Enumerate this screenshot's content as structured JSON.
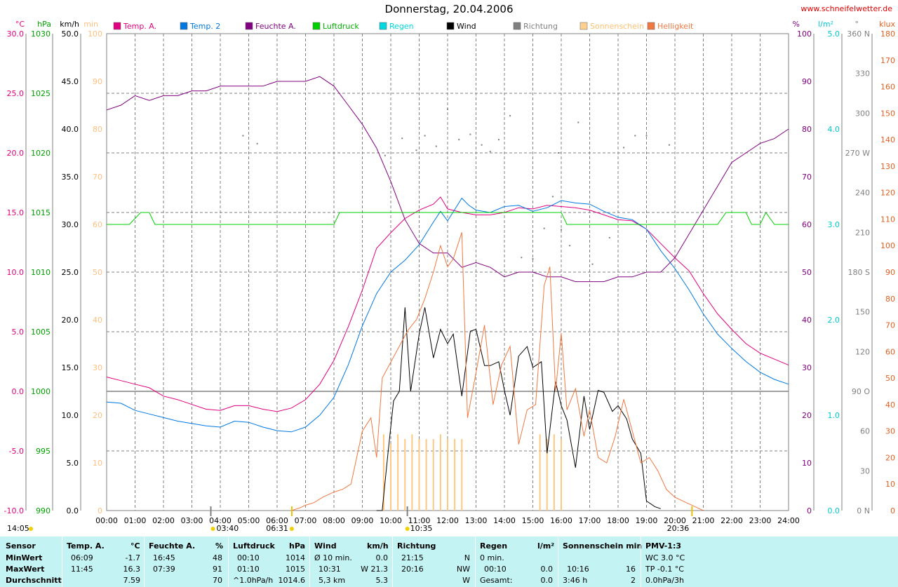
{
  "header": {
    "title": "Donnerstag, 20.04.2006",
    "site": "www.schneifelwetter.de"
  },
  "legend": [
    {
      "label": "Temp. A.",
      "color": "#e0007f"
    },
    {
      "label": "Temp. 2",
      "color": "#0078e0"
    },
    {
      "label": "Feuchte A.",
      "color": "#800080"
    },
    {
      "label": "Luftdruck",
      "color": "#00d000"
    },
    {
      "label": "Regen",
      "color": "#00d8e0"
    },
    {
      "label": "Wind",
      "color": "#000000"
    },
    {
      "label": "Richtung",
      "color": "#808080"
    },
    {
      "label": "Sonnenschein",
      "color": "#ffd090"
    },
    {
      "label": "Helligkeit",
      "color": "#f07840"
    }
  ],
  "axes": {
    "temp": {
      "unit": "°C",
      "ticks": [
        "30.0",
        "25.0",
        "20.0",
        "15.0",
        "10.0",
        "5.0",
        "0.0",
        "-5.0",
        "-10.0"
      ],
      "color": "#e0007f"
    },
    "pressure": {
      "unit": "hPa",
      "ticks": [
        "1030",
        "1025",
        "1020",
        "1015",
        "1010",
        "1005",
        "1000",
        "995",
        "990"
      ],
      "color": "#00a000"
    },
    "wind": {
      "unit": "km/h",
      "ticks": [
        "50.0",
        "45.0",
        "40.0",
        "35.0",
        "30.0",
        "25.0",
        "20.0",
        "15.0",
        "10.0",
        "5.0",
        "0.0"
      ],
      "color": "#000000"
    },
    "sunmin": {
      "unit": "min",
      "ticks": [
        "100",
        "90",
        "80",
        "70",
        "60",
        "50",
        "40",
        "30",
        "20",
        "10",
        "0"
      ],
      "color": "#ffc080"
    },
    "humidity": {
      "unit": "%",
      "ticks": [
        "100",
        "90",
        "80",
        "70",
        "60",
        "50",
        "40",
        "30",
        "20",
        "10",
        "0"
      ],
      "color": "#800080"
    },
    "rain": {
      "unit": "l/m²",
      "ticks": [
        "5.0",
        "4.0",
        "3.0",
        "2.0",
        "1.0",
        "0.0"
      ],
      "color": "#00c8d0"
    },
    "direction": {
      "unit": "°",
      "ticks": [
        "360 N",
        "330",
        "300",
        "270 W",
        "240",
        "210",
        "180 S",
        "150",
        "120",
        "90 O",
        "60",
        "30",
        "0 N"
      ],
      "color": "#808080"
    },
    "lux": {
      "unit": "klux",
      "ticks": [
        "180",
        "170",
        "160",
        "150",
        "140",
        "130",
        "120",
        "110",
        "100",
        "90",
        "80",
        "70",
        "60",
        "50",
        "40",
        "30",
        "20",
        "10",
        "0"
      ],
      "color": "#e06020"
    },
    "time": {
      "ticks": [
        "00:00",
        "01:00",
        "02:00",
        "03:00",
        "04:00",
        "05:00",
        "06:00",
        "07:00",
        "08:00",
        "09:00",
        "10:00",
        "11:00",
        "12:00",
        "13:00",
        "14:00",
        "15:00",
        "16:00",
        "17:00",
        "18:00",
        "19:00",
        "20:00",
        "21:00",
        "22:00",
        "23:00",
        "24:00"
      ]
    }
  },
  "markers": {
    "first": "14:05",
    "moonset": "03:40",
    "sunrise": "06:31",
    "solar_noon": "10:35",
    "sunset": "20:36"
  },
  "chart_data": {
    "type": "line",
    "x_unit": "hours",
    "series": [
      {
        "name": "Temp. A.",
        "axis": "temp",
        "x": [
          0,
          0.5,
          1,
          1.5,
          2,
          2.5,
          3,
          3.5,
          4,
          4.5,
          5,
          5.5,
          6,
          6.5,
          7,
          7.5,
          8,
          8.5,
          9,
          9.5,
          10,
          10.5,
          11,
          11.5,
          11.75,
          12,
          12.5,
          13,
          13.5,
          14,
          14.5,
          15,
          15.5,
          16,
          16.5,
          17,
          17.5,
          18,
          18.5,
          19,
          19.5,
          20,
          20.5,
          21,
          21.5,
          22,
          22.5,
          23,
          23.5,
          24
        ],
        "y": [
          1.2,
          0.9,
          0.6,
          0.3,
          -0.4,
          -0.7,
          -1.1,
          -1.5,
          -1.6,
          -1.2,
          -1.2,
          -1.5,
          -1.7,
          -1.4,
          -0.7,
          0.6,
          2.6,
          5.4,
          8.5,
          12.0,
          13.3,
          14.5,
          15.2,
          15.7,
          16.3,
          15.3,
          15.0,
          14.8,
          14.8,
          15.0,
          15.4,
          15.3,
          15.6,
          15.5,
          15.4,
          15.2,
          14.8,
          14.4,
          14.3,
          13.6,
          12.4,
          11.2,
          10.1,
          8.2,
          6.5,
          5.2,
          4.0,
          3.2,
          2.7,
          2.2
        ]
      },
      {
        "name": "Temp. 2",
        "axis": "temp",
        "x": [
          0,
          0.5,
          1,
          1.5,
          2,
          2.5,
          3,
          3.5,
          4,
          4.5,
          5,
          5.5,
          6,
          6.5,
          7,
          7.5,
          8,
          8.5,
          9,
          9.5,
          10,
          10.5,
          11,
          11.5,
          11.75,
          12,
          12.5,
          12.75,
          13,
          13.5,
          14,
          14.5,
          15,
          15.5,
          16,
          16.5,
          17,
          17.5,
          18,
          18.5,
          19,
          19.5,
          20,
          20.5,
          21,
          21.5,
          22,
          22.5,
          23,
          23.5,
          24
        ],
        "y": [
          -0.9,
          -1.0,
          -1.6,
          -1.9,
          -2.2,
          -2.5,
          -2.7,
          -2.9,
          -3.0,
          -2.5,
          -2.6,
          -3.0,
          -3.3,
          -3.4,
          -3.0,
          -2.0,
          -0.5,
          2.2,
          5.5,
          8.2,
          10.0,
          11.0,
          12.3,
          14.2,
          15.1,
          14.3,
          16.2,
          15.6,
          15.2,
          15.0,
          15.5,
          15.6,
          15.1,
          15.4,
          16.0,
          15.8,
          15.7,
          15.1,
          14.6,
          14.4,
          13.6,
          11.8,
          10.3,
          8.5,
          6.5,
          4.8,
          3.6,
          2.5,
          1.6,
          1.0,
          0.6
        ]
      },
      {
        "name": "Feuchte A.",
        "axis": "humidity",
        "x": [
          0,
          0.5,
          1,
          1.5,
          2,
          2.5,
          3,
          3.5,
          4,
          4.5,
          5,
          5.5,
          6,
          6.5,
          7,
          7.5,
          8,
          8.5,
          9,
          9.5,
          10,
          10.5,
          11,
          11.5,
          12,
          12.5,
          13,
          13.5,
          14,
          14.5,
          15,
          15.5,
          16,
          16.5,
          17,
          17.5,
          18,
          18.5,
          19,
          19.5,
          20,
          20.5,
          21,
          21.5,
          22,
          22.5,
          23,
          23.5,
          24
        ],
        "y": [
          84,
          85,
          87,
          86,
          87,
          87,
          88,
          88,
          89,
          89,
          89,
          89,
          90,
          90,
          90,
          91,
          89,
          85,
          81,
          76,
          69,
          61,
          56,
          54,
          54,
          51,
          52,
          51,
          49,
          50,
          50,
          49,
          49,
          48,
          48,
          48,
          49,
          49,
          50,
          50,
          53,
          58,
          63,
          68,
          73,
          75,
          77,
          78,
          80
        ]
      },
      {
        "name": "Luftdruck",
        "axis": "pressure",
        "x": [
          0,
          0.8,
          1.2,
          1.5,
          1.7,
          2,
          7.8,
          8,
          8.2,
          16,
          16.2,
          21.5,
          21.8,
          22.5,
          22.7,
          23,
          23.2,
          23.5,
          24
        ],
        "y": [
          1014,
          1014,
          1015,
          1015,
          1014,
          1014,
          1014,
          1014,
          1015,
          1015,
          1014,
          1014,
          1015,
          1015,
          1014,
          1014,
          1015,
          1014,
          1014
        ]
      },
      {
        "name": "Wind",
        "axis": "wind",
        "x": [
          9.5,
          9.7,
          9.9,
          10.1,
          10.3,
          10.5,
          10.7,
          11,
          11.2,
          11.5,
          11.75,
          12,
          12.2,
          12.5,
          12.8,
          13,
          13.3,
          13.5,
          13.8,
          14,
          14.2,
          14.5,
          14.8,
          15,
          15.3,
          15.5,
          15.8,
          16,
          16.2,
          16.5,
          16.8,
          17,
          17.3,
          17.5,
          17.8,
          18,
          18.3,
          18.5,
          18.8,
          19,
          19.3,
          19.5
        ],
        "y": [
          0,
          0,
          6.0,
          11.5,
          12.5,
          21.3,
          12.5,
          18.5,
          21.3,
          16.0,
          19.0,
          17.5,
          18.5,
          12.0,
          18.8,
          19.0,
          15.2,
          15.2,
          15.6,
          12.6,
          10.0,
          16.2,
          17.2,
          15.0,
          15.6,
          6.0,
          13.5,
          11.0,
          9.5,
          4.5,
          12.0,
          8.5,
          12.6,
          12.4,
          10.4,
          11.0,
          9.6,
          7.5,
          6.0,
          1.0,
          0.4,
          0.2
        ]
      },
      {
        "name": "Richtung",
        "axis": "direction",
        "type": "scatter",
        "x": [
          4.8,
          5.3,
          9.8,
          10.4,
          10.9,
          11.2,
          11.6,
          12.0,
          12.4,
          12.8,
          13.2,
          13.5,
          13.8,
          14.2,
          14.6,
          15.0,
          15.4,
          15.7,
          15.9,
          16.0,
          16.3,
          16.6,
          17.1,
          17.7,
          18.2,
          18.6,
          19.0,
          19.8
        ],
        "y": [
          283,
          277,
          268,
          281,
          272,
          283,
          275,
          303,
          280,
          284,
          276,
          271,
          280,
          298,
          191,
          190,
          213,
          237,
          270,
          212,
          200,
          293,
          186,
          206,
          274,
          283,
          283,
          276
        ]
      },
      {
        "name": "Helligkeit",
        "axis": "lux",
        "x": [
          6.5,
          6.8,
          7.0,
          7.3,
          7.6,
          8.0,
          8.3,
          8.6,
          9.0,
          9.3,
          9.5,
          9.7,
          10.0,
          10.3,
          10.6,
          10.9,
          11.2,
          11.5,
          11.75,
          12,
          12.2,
          12.5,
          12.7,
          13,
          13.3,
          13.6,
          13.9,
          14.2,
          14.5,
          14.8,
          15.1,
          15.4,
          15.6,
          15.8,
          16.0,
          16.2,
          16.5,
          16.8,
          17.0,
          17.3,
          17.6,
          17.9,
          18.2,
          18.5,
          18.8,
          19.1,
          19.4,
          19.7,
          20.0,
          20.4,
          20.8,
          21.0
        ],
        "y": [
          0,
          1,
          2,
          3,
          5,
          7,
          8,
          10,
          30,
          35,
          20,
          50,
          56,
          62,
          68,
          72,
          80,
          90,
          100,
          92,
          95,
          105,
          35,
          52,
          70,
          40,
          55,
          62,
          25,
          38,
          40,
          85,
          92,
          45,
          67,
          38,
          46,
          28,
          38,
          20,
          18,
          28,
          42,
          30,
          18,
          20,
          15,
          8,
          5,
          3,
          1,
          0
        ]
      }
    ],
    "sunshine_bars": {
      "axis": "sunmin",
      "x": [
        9.75,
        10.0,
        10.25,
        10.5,
        10.75,
        11.0,
        11.25,
        11.5,
        11.75,
        12.0,
        12.25,
        12.5,
        15.25,
        15.5,
        15.75,
        16.0
      ],
      "y": [
        16,
        14,
        16,
        15,
        16,
        15,
        15,
        15,
        16,
        15,
        15,
        15,
        16,
        15,
        16,
        15
      ]
    }
  },
  "summary": {
    "sensor": {
      "title": "Sensor",
      "rows": [
        "MinWert",
        "MaxWert",
        "Durchschnitt"
      ]
    },
    "temp": {
      "title": "Temp. A.",
      "unit": "°C",
      "rows": [
        [
          "06:09",
          "-1.7"
        ],
        [
          "11:45",
          "16.3"
        ],
        [
          "",
          "7.59"
        ]
      ]
    },
    "humidity": {
      "title": "Feuchte A.",
      "unit": "%",
      "rows": [
        [
          "16:45",
          "48"
        ],
        [
          "07:39",
          "91"
        ],
        [
          "",
          "70"
        ]
      ]
    },
    "pressure": {
      "title": "Luftdruck",
      "unit": "hPa",
      "rows": [
        [
          "00:10",
          "1014"
        ],
        [
          "01:10",
          "1015"
        ],
        [
          "^1.0hPa/h",
          "1014.6"
        ]
      ]
    },
    "wind": {
      "title": "Wind",
      "unit": "km/h",
      "rows": [
        [
          "Ø 10 min.",
          "0.0"
        ],
        [
          "10:31",
          "W 21.3"
        ],
        [
          "5,3 km",
          "5.3"
        ]
      ]
    },
    "direction": {
      "title": "Richtung",
      "rows": [
        [
          "21:15",
          "N"
        ],
        [
          "20:16",
          "NW"
        ],
        [
          "",
          "W"
        ]
      ]
    },
    "rain": {
      "title": "Regen",
      "unit": "l/m²",
      "rows": [
        [
          "0 min.",
          ""
        ],
        [
          "00:10",
          "0.0"
        ],
        [
          "Gesamt:",
          "0.0"
        ]
      ]
    },
    "sunshine": {
      "title": "Sonnenschein min",
      "rows": [
        [
          "",
          ""
        ],
        [
          "10:16",
          "16"
        ],
        [
          "3:46 h",
          "2"
        ]
      ]
    },
    "pmv": {
      "title": "PMV-1:3",
      "rows": [
        "WC 3.0 °C",
        "TP -0.1 °C",
        "0.0hPa/3h"
      ]
    }
  }
}
